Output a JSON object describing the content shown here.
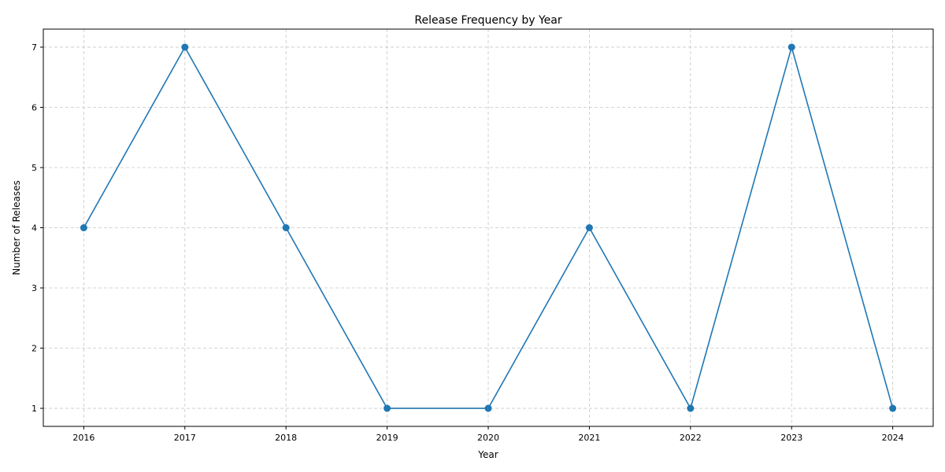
{
  "chart_data": {
    "type": "line",
    "title": "Release Frequency by Year",
    "xlabel": "Year",
    "ylabel": "Number of Releases",
    "x": [
      2016,
      2017,
      2018,
      2019,
      2020,
      2021,
      2022,
      2023,
      2024
    ],
    "series": [
      {
        "values": [
          4,
          7,
          4,
          1,
          1,
          4,
          1,
          7,
          1
        ],
        "color": "#1f77b4",
        "marker": "circle"
      }
    ],
    "xlim": [
      2015.6,
      2024.4
    ],
    "ylim": [
      0.7,
      7.3
    ],
    "xticks": [
      "2016",
      "2017",
      "2018",
      "2019",
      "2020",
      "2021",
      "2022",
      "2023",
      "2024"
    ],
    "yticks": [
      "1",
      "2",
      "3",
      "4",
      "5",
      "6",
      "7"
    ],
    "grid": true
  }
}
